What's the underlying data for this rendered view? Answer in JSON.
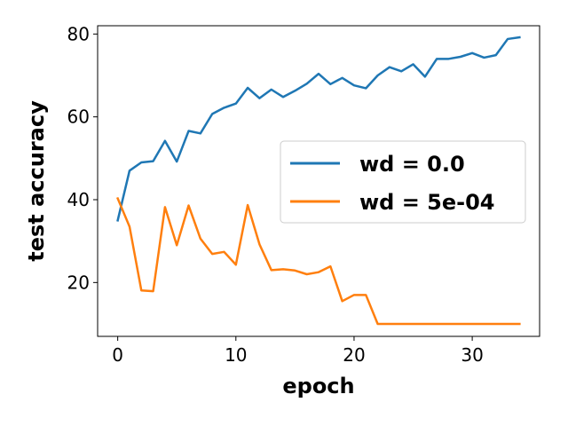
{
  "chart_data": {
    "type": "line",
    "title": "",
    "xlabel": "epoch",
    "ylabel": "test accuracy",
    "xlim": [
      -1.7,
      35.7
    ],
    "ylim": [
      7.0,
      82.0
    ],
    "xticks": [
      0,
      10,
      20,
      30
    ],
    "yticks": [
      20,
      40,
      60,
      80
    ],
    "grid": false,
    "legend_position": "center-right",
    "x": [
      0,
      1,
      2,
      3,
      4,
      5,
      6,
      7,
      8,
      9,
      10,
      11,
      12,
      13,
      14,
      15,
      16,
      17,
      18,
      19,
      20,
      21,
      22,
      23,
      24,
      25,
      26,
      27,
      28,
      29,
      30,
      31,
      32,
      33,
      34
    ],
    "series": [
      {
        "name": "wd = 0.0",
        "color": "#1f77b4",
        "values": [
          35.0,
          47.0,
          49.0,
          49.3,
          54.2,
          49.2,
          56.6,
          56.0,
          60.7,
          62.2,
          63.2,
          67.0,
          64.5,
          66.6,
          64.8,
          66.3,
          68.0,
          70.4,
          67.9,
          69.4,
          67.6,
          66.9,
          70.0,
          72.0,
          71.0,
          72.7,
          69.7,
          74.0,
          74.0,
          74.5,
          75.4,
          74.3,
          74.9,
          78.8,
          79.2
        ]
      },
      {
        "name": "wd = 5e-04",
        "color": "#ff7f0e",
        "values": [
          40.3,
          33.5,
          18.1,
          17.9,
          38.2,
          29.0,
          38.6,
          30.6,
          26.9,
          27.4,
          24.3,
          38.7,
          29.2,
          23.0,
          23.2,
          22.9,
          22.0,
          22.5,
          23.9,
          15.5,
          17.0,
          17.0,
          10.0,
          10.0,
          10.0,
          10.0,
          10.0,
          10.0,
          10.0,
          10.0,
          10.0,
          10.0,
          10.0,
          10.0,
          10.0
        ]
      }
    ]
  }
}
